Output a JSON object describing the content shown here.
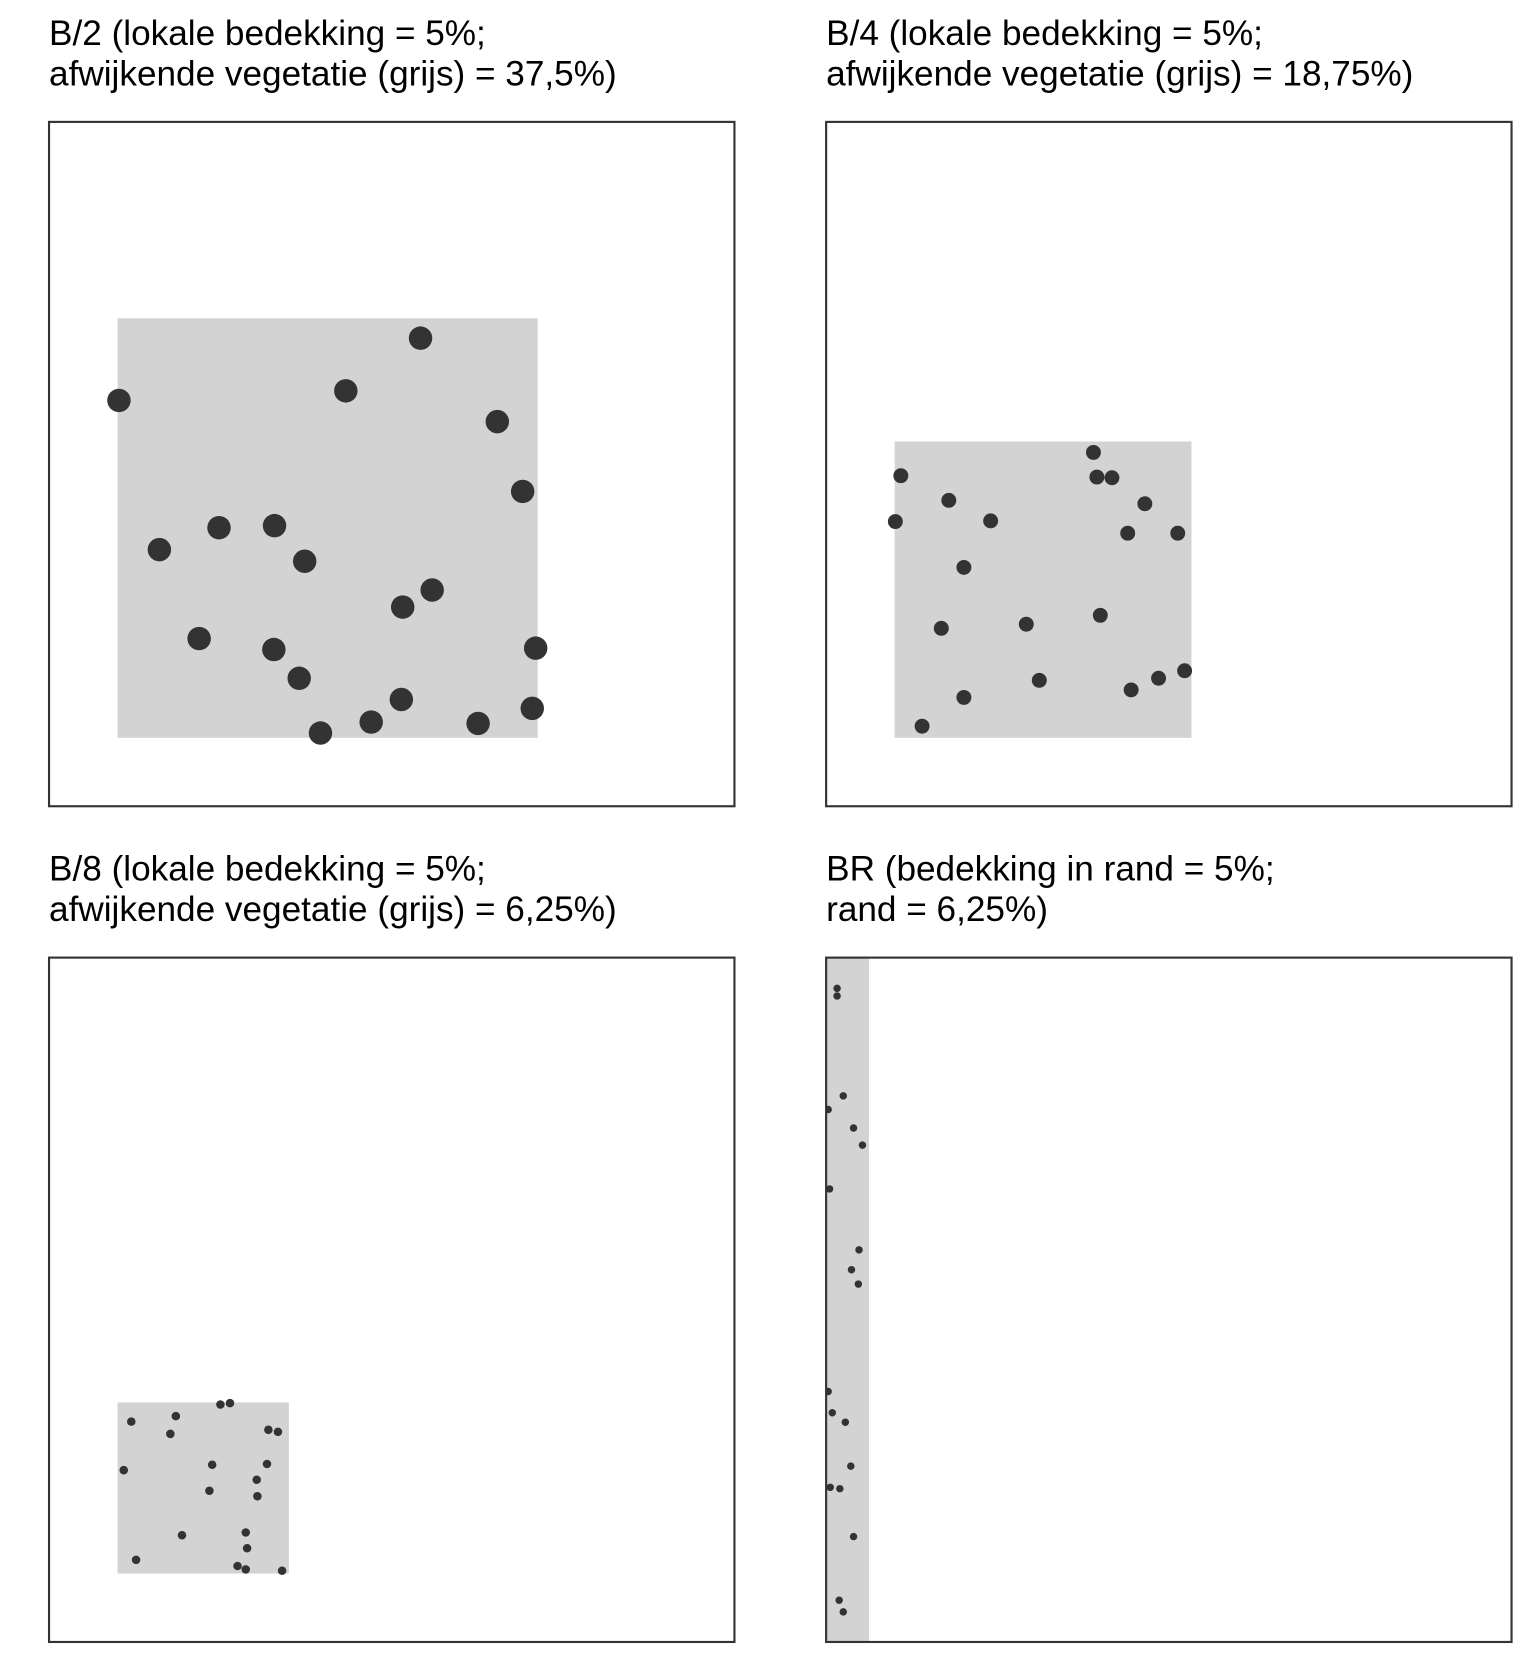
{
  "chart_data": [
    {
      "type": "scatter",
      "title": [
        "B/2 (lokale bedekking = 5%;",
        "afwijkende vegetatie (grijs) = 37,5%)"
      ],
      "xlim": [
        0,
        1
      ],
      "ylim": [
        0,
        1
      ],
      "color": "#333333",
      "region": {
        "x": [
          0.1,
          0.713
        ],
        "y": [
          0.1,
          0.713
        ],
        "color": "#d3d3d3"
      },
      "x": [
        0.542,
        0.102,
        0.433,
        0.654,
        0.691,
        0.161,
        0.248,
        0.329,
        0.373,
        0.516,
        0.559,
        0.219,
        0.328,
        0.71,
        0.365,
        0.514,
        0.705,
        0.396,
        0.47,
        0.626
      ],
      "y": [
        0.684,
        0.593,
        0.607,
        0.562,
        0.46,
        0.375,
        0.407,
        0.41,
        0.358,
        0.291,
        0.316,
        0.245,
        0.229,
        0.231,
        0.187,
        0.156,
        0.143,
        0.107,
        0.123,
        0.121
      ]
    },
    {
      "type": "scatter",
      "title": [
        "B/4 (lokale bedekking = 5%;",
        "afwijkende vegetatie (grijs) = 18,75%)"
      ],
      "xlim": [
        0,
        1
      ],
      "ylim": [
        0,
        1
      ],
      "color": "#333333",
      "region": {
        "x": [
          0.1,
          0.533
        ],
        "y": [
          0.1,
          0.533
        ],
        "color": "#d3d3d3"
      },
      "x": [
        0.39,
        0.109,
        0.395,
        0.417,
        0.179,
        0.465,
        0.101,
        0.24,
        0.44,
        0.513,
        0.201,
        0.168,
        0.292,
        0.4,
        0.311,
        0.201,
        0.523,
        0.485,
        0.445,
        0.14
      ],
      "y": [
        0.517,
        0.483,
        0.481,
        0.48,
        0.447,
        0.442,
        0.416,
        0.417,
        0.399,
        0.399,
        0.349,
        0.26,
        0.266,
        0.279,
        0.184,
        0.159,
        0.198,
        0.187,
        0.17,
        0.117
      ]
    },
    {
      "type": "scatter",
      "title": [
        "B/8 (lokale bedekking = 5%;",
        "afwijkende vegetatie (grijs) = 6,25%)"
      ],
      "xlim": [
        0,
        1
      ],
      "ylim": [
        0,
        1
      ],
      "color": "#333333",
      "region": {
        "x": [
          0.1,
          0.35
        ],
        "y": [
          0.1,
          0.35
        ],
        "color": "#d3d3d3"
      },
      "x": [
        0.25,
        0.264,
        0.12,
        0.185,
        0.177,
        0.32,
        0.334,
        0.109,
        0.238,
        0.318,
        0.303,
        0.234,
        0.304,
        0.194,
        0.287,
        0.289,
        0.127,
        0.275,
        0.287,
        0.34
      ],
      "y": [
        0.347,
        0.349,
        0.322,
        0.33,
        0.304,
        0.31,
        0.307,
        0.251,
        0.259,
        0.26,
        0.237,
        0.221,
        0.213,
        0.156,
        0.16,
        0.137,
        0.12,
        0.111,
        0.106,
        0.104
      ]
    },
    {
      "type": "scatter",
      "title": [
        "BR (bedekking in rand = 5%;",
        "rand = 6,25%)"
      ],
      "xlim": [
        0,
        1
      ],
      "ylim": [
        0,
        1
      ],
      "color": "#333333",
      "region": {
        "x": [
          0,
          0.0625
        ],
        "y": [
          0,
          1
        ],
        "color": "#d3d3d3"
      },
      "x": [
        0.016,
        0.016,
        0.025,
        0.003,
        0.04,
        0.053,
        0.005,
        0.048,
        0.037,
        0.047,
        0.003,
        0.009,
        0.028,
        0.036,
        0.006,
        0.02,
        0.04,
        0.019,
        0.025
      ],
      "y": [
        0.955,
        0.944,
        0.798,
        0.778,
        0.751,
        0.726,
        0.662,
        0.573,
        0.544,
        0.523,
        0.366,
        0.335,
        0.321,
        0.257,
        0.226,
        0.224,
        0.154,
        0.061,
        0.044
      ]
    }
  ]
}
